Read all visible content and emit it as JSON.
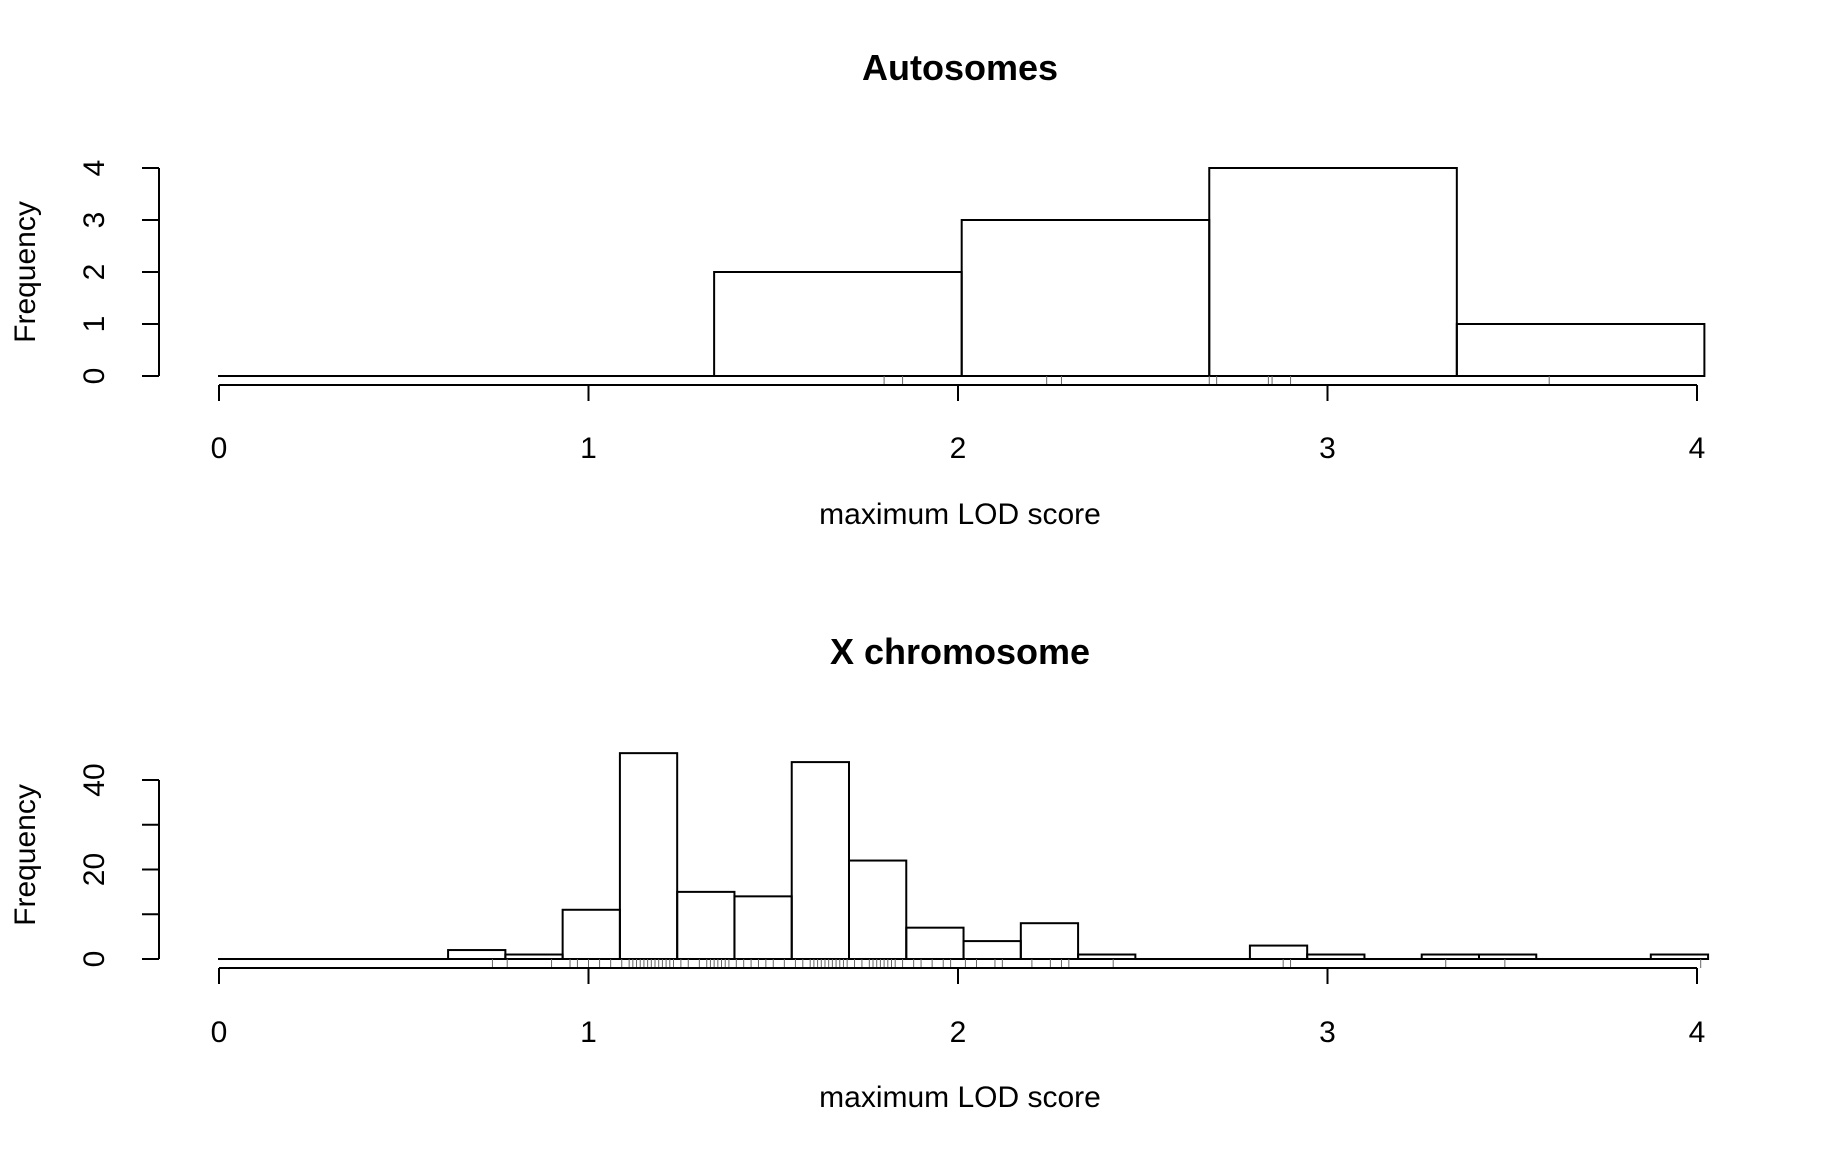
{
  "chart_data": [
    {
      "type": "bar",
      "title": "Autosomes",
      "xlabel": "maximum LOD score",
      "ylabel": "Frequency",
      "xlim": [
        0,
        4
      ],
      "ylim": [
        0,
        4
      ],
      "x_ticks": [
        "0",
        "1",
        "2",
        "3",
        "4"
      ],
      "y_ticks": [
        "0",
        "1",
        "2",
        "3",
        "4"
      ],
      "grid": false,
      "bins": [
        {
          "start": 0.0,
          "end": 0.67,
          "count": 0
        },
        {
          "start": 0.67,
          "end": 1.34,
          "count": 0
        },
        {
          "start": 1.34,
          "end": 2.01,
          "count": 2
        },
        {
          "start": 2.01,
          "end": 2.68,
          "count": 3
        },
        {
          "start": 2.68,
          "end": 3.35,
          "count": 4
        },
        {
          "start": 3.35,
          "end": 4.02,
          "count": 1
        }
      ],
      "rug": [
        1.8,
        1.85,
        2.24,
        2.28,
        2.68,
        2.7,
        2.84,
        2.85,
        2.9,
        3.6
      ]
    },
    {
      "type": "bar",
      "title": "X chromosome",
      "xlabel": "maximum LOD score",
      "ylabel": "Frequency",
      "xlim": [
        0,
        4
      ],
      "ylim": [
        0,
        46
      ],
      "x_ticks": [
        "0",
        "1",
        "2",
        "3",
        "4"
      ],
      "y_ticks": [
        "0",
        "20",
        "40"
      ],
      "y_minor_ticks": [
        10,
        30
      ],
      "grid": false,
      "bins": [
        {
          "start": 0.0,
          "end": 0.155,
          "count": 0
        },
        {
          "start": 0.155,
          "end": 0.31,
          "count": 0
        },
        {
          "start": 0.31,
          "end": 0.465,
          "count": 0
        },
        {
          "start": 0.465,
          "end": 0.62,
          "count": 0
        },
        {
          "start": 0.62,
          "end": 0.775,
          "count": 2
        },
        {
          "start": 0.775,
          "end": 0.93,
          "count": 1
        },
        {
          "start": 0.93,
          "end": 1.085,
          "count": 11
        },
        {
          "start": 1.085,
          "end": 1.24,
          "count": 46
        },
        {
          "start": 1.24,
          "end": 1.395,
          "count": 15
        },
        {
          "start": 1.395,
          "end": 1.55,
          "count": 14
        },
        {
          "start": 1.55,
          "end": 1.705,
          "count": 44
        },
        {
          "start": 1.705,
          "end": 1.86,
          "count": 22
        },
        {
          "start": 1.86,
          "end": 2.015,
          "count": 7
        },
        {
          "start": 2.015,
          "end": 2.17,
          "count": 4
        },
        {
          "start": 2.17,
          "end": 2.325,
          "count": 8
        },
        {
          "start": 2.325,
          "end": 2.48,
          "count": 1
        },
        {
          "start": 2.48,
          "end": 2.635,
          "count": 0
        },
        {
          "start": 2.635,
          "end": 2.79,
          "count": 0
        },
        {
          "start": 2.79,
          "end": 2.945,
          "count": 3
        },
        {
          "start": 2.945,
          "end": 3.1,
          "count": 1
        },
        {
          "start": 3.1,
          "end": 3.255,
          "count": 0
        },
        {
          "start": 3.255,
          "end": 3.41,
          "count": 1
        },
        {
          "start": 3.41,
          "end": 3.565,
          "count": 1
        },
        {
          "start": 3.565,
          "end": 3.72,
          "count": 0
        },
        {
          "start": 3.72,
          "end": 3.875,
          "count": 0
        },
        {
          "start": 3.875,
          "end": 4.03,
          "count": 1
        }
      ],
      "rug": [
        0.74,
        0.78,
        0.9,
        0.95,
        0.97,
        1.0,
        1.03,
        1.06,
        1.09,
        1.11,
        1.12,
        1.13,
        1.14,
        1.15,
        1.16,
        1.17,
        1.18,
        1.19,
        1.2,
        1.21,
        1.22,
        1.23,
        1.25,
        1.27,
        1.3,
        1.32,
        1.33,
        1.34,
        1.35,
        1.36,
        1.37,
        1.38,
        1.4,
        1.42,
        1.44,
        1.46,
        1.48,
        1.5,
        1.53,
        1.56,
        1.58,
        1.6,
        1.61,
        1.62,
        1.63,
        1.64,
        1.65,
        1.66,
        1.67,
        1.68,
        1.69,
        1.7,
        1.72,
        1.74,
        1.76,
        1.77,
        1.78,
        1.79,
        1.8,
        1.81,
        1.82,
        1.83,
        1.85,
        1.88,
        1.9,
        1.93,
        1.96,
        1.98,
        2.02,
        2.05,
        2.1,
        2.12,
        2.2,
        2.25,
        2.28,
        2.3,
        2.42,
        2.88,
        2.9,
        3.32,
        3.48,
        4.01
      ]
    }
  ]
}
